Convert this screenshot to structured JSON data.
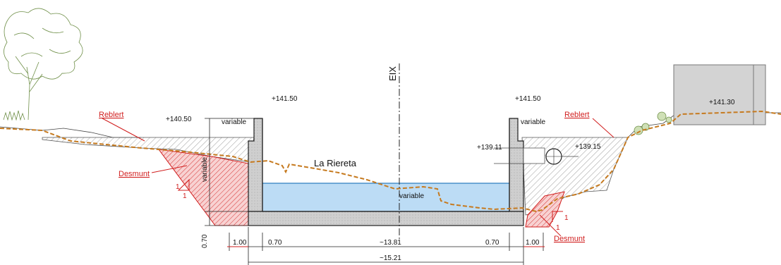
{
  "labels": {
    "elev_left_ground": "+140.50",
    "elev_left_wall": "+141.50",
    "elev_right_wall": "+141.50",
    "elev_right_building": "+141.30",
    "elev_pipe_left": "+139.11",
    "elev_pipe_right": "+139.15",
    "variable_left_top": "variable",
    "variable_right_top": "variable",
    "variable_vertical": "variable",
    "variable_water": "variable",
    "channel_name": "La Riereta",
    "axis": "EIX",
    "reblert_left": "Reblert",
    "reblert_right": "Reblert",
    "desmunt_left": "Desmunt",
    "desmunt_right": "Desmunt",
    "slope_left_v": "1",
    "slope_left_h": "1",
    "slope_right_v": "1",
    "slope_right_h": "1",
    "dim_070_left_vertical": "0.70",
    "dim_100_left": "1.00",
    "dim_070_left": "0.70",
    "dim_1381": "~13.81",
    "dim_070_right": "0.70",
    "dim_100_right": "1.00",
    "dim_1521": "~15.21"
  },
  "colors": {
    "water": "#bcdcf5",
    "water_line": "#2f7fc1",
    "concrete": "#c9c9c9",
    "reblert_hatch": "#8a8a8a",
    "desmunt_fill": "#f6c9c9",
    "desmunt_hatch": "#d11f1f",
    "terrain_line": "#c67a1f",
    "annotation_red": "#d11f1f",
    "vegetation": "#7fa14a"
  }
}
